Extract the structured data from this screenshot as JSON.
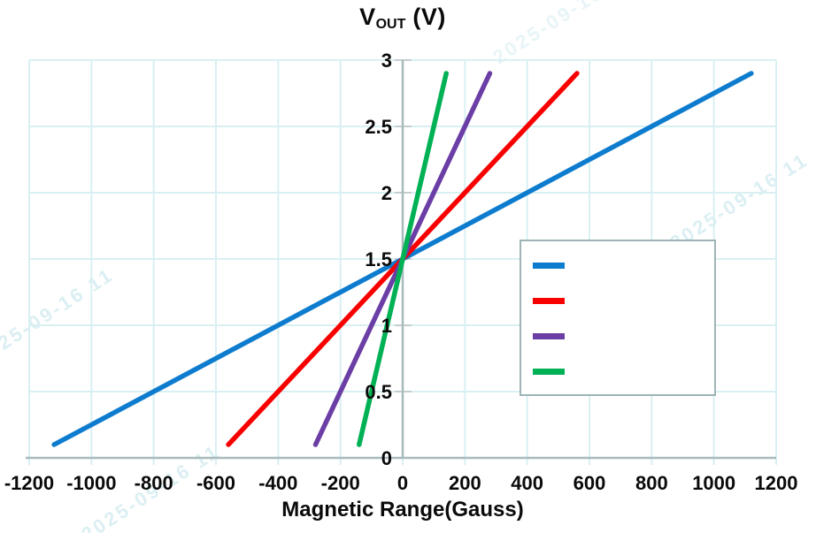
{
  "title_parts": {
    "base": "V",
    "sub": "OUT",
    "unit": " (V)"
  },
  "x_axis": {
    "title": "Magnetic Range(Gauss)"
  },
  "watermark": {
    "text": "2025-09-16 11",
    "color": "#bfe2ea"
  },
  "legend": {
    "items": [
      {
        "name": "blue",
        "color": "#0d7cce",
        "label": ""
      },
      {
        "name": "red",
        "color": "#f80000",
        "label": ""
      },
      {
        "name": "purple",
        "color": "#6b3ea6",
        "label": ""
      },
      {
        "name": "green",
        "color": "#00b155",
        "label": ""
      }
    ],
    "border_color": "#9fb3b5"
  },
  "chart_data": {
    "type": "line",
    "title": "V_OUT (V)",
    "xlabel": "Magnetic Range(Gauss)",
    "ylabel": "V_OUT (V)",
    "xlim": [
      -1200,
      1200
    ],
    "ylim": [
      0,
      3
    ],
    "x_ticks": [
      -1200,
      -1000,
      -800,
      -600,
      -400,
      -200,
      0,
      200,
      400,
      600,
      800,
      1000,
      1200
    ],
    "y_ticks": [
      0,
      0.5,
      1,
      1.5,
      2,
      2.5,
      3
    ],
    "grid": true,
    "grid_color": "#d9f0f3",
    "axis_color": "#a8babc",
    "legend_position": "center-right",
    "legend_labels_visible": false,
    "series": [
      {
        "name": "blue",
        "color": "#0d7cce",
        "label": "",
        "points": [
          [
            -1120,
            0.1
          ],
          [
            0,
            1.5
          ],
          [
            1120,
            2.9
          ]
        ]
      },
      {
        "name": "red",
        "color": "#f80000",
        "label": "",
        "points": [
          [
            -560,
            0.1
          ],
          [
            0,
            1.5
          ],
          [
            560,
            2.9
          ]
        ]
      },
      {
        "name": "purple",
        "color": "#6b3ea6",
        "label": "",
        "points": [
          [
            -280,
            0.1
          ],
          [
            0,
            1.5
          ],
          [
            280,
            2.9
          ]
        ]
      },
      {
        "name": "green",
        "color": "#00b155",
        "label": "",
        "points": [
          [
            -140,
            0.1
          ],
          [
            0,
            1.5
          ],
          [
            140,
            2.9
          ]
        ]
      }
    ],
    "note": "All four transfer curves intersect at (0 Gauss, 1.5 V)"
  }
}
